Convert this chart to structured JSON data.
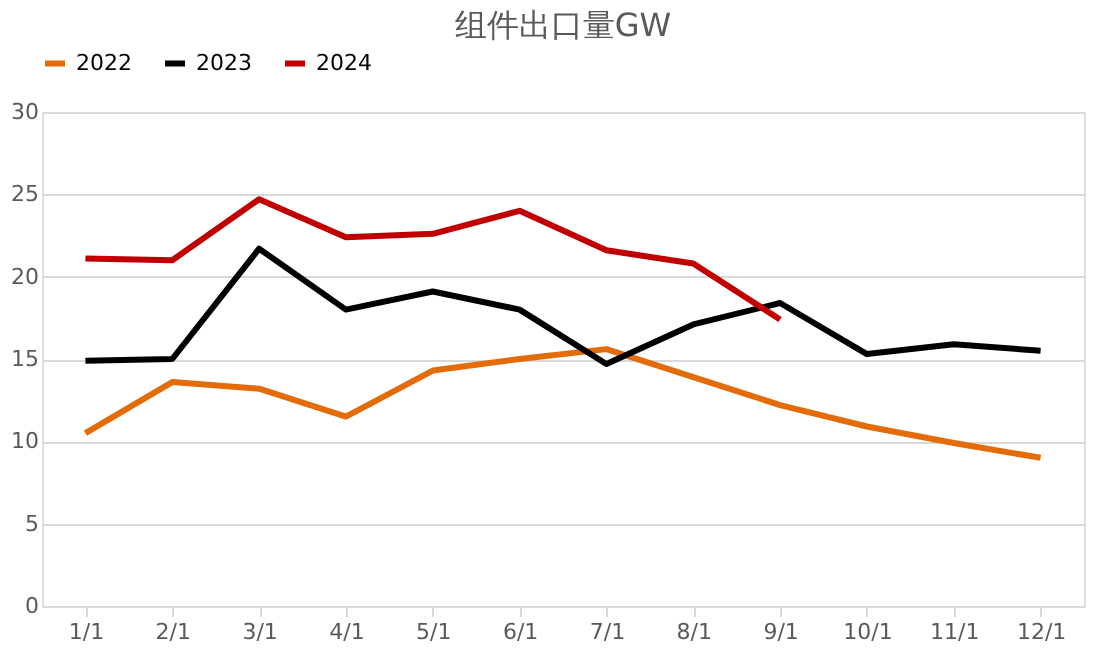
{
  "chart_data": {
    "type": "line",
    "title": "组件出口量GW",
    "categories": [
      "1/1",
      "2/1",
      "3/1",
      "4/1",
      "5/1",
      "6/1",
      "7/1",
      "8/1",
      "9/1",
      "10/1",
      "11/1",
      "12/1"
    ],
    "series": [
      {
        "name": "2022",
        "color": "#e36c09",
        "values": [
          10.5,
          13.6,
          13.2,
          11.5,
          14.3,
          15.0,
          15.6,
          13.9,
          12.2,
          10.9,
          9.9,
          9.0
        ]
      },
      {
        "name": "2023",
        "color": "#000000",
        "values": [
          14.9,
          15.0,
          21.7,
          18.0,
          19.1,
          18.0,
          14.7,
          17.1,
          18.4,
          15.3,
          15.9,
          15.5
        ]
      },
      {
        "name": "2024",
        "color": "#c00000",
        "values": [
          21.1,
          21.0,
          24.7,
          22.4,
          22.6,
          24.0,
          21.6,
          20.8,
          17.4,
          null,
          null,
          null
        ]
      }
    ],
    "ylim": [
      0,
      30
    ],
    "yticks": [
      0,
      5,
      10,
      15,
      20,
      25,
      30
    ],
    "grid": "y",
    "legend": "top",
    "marker": "none",
    "line_style": "solid"
  }
}
